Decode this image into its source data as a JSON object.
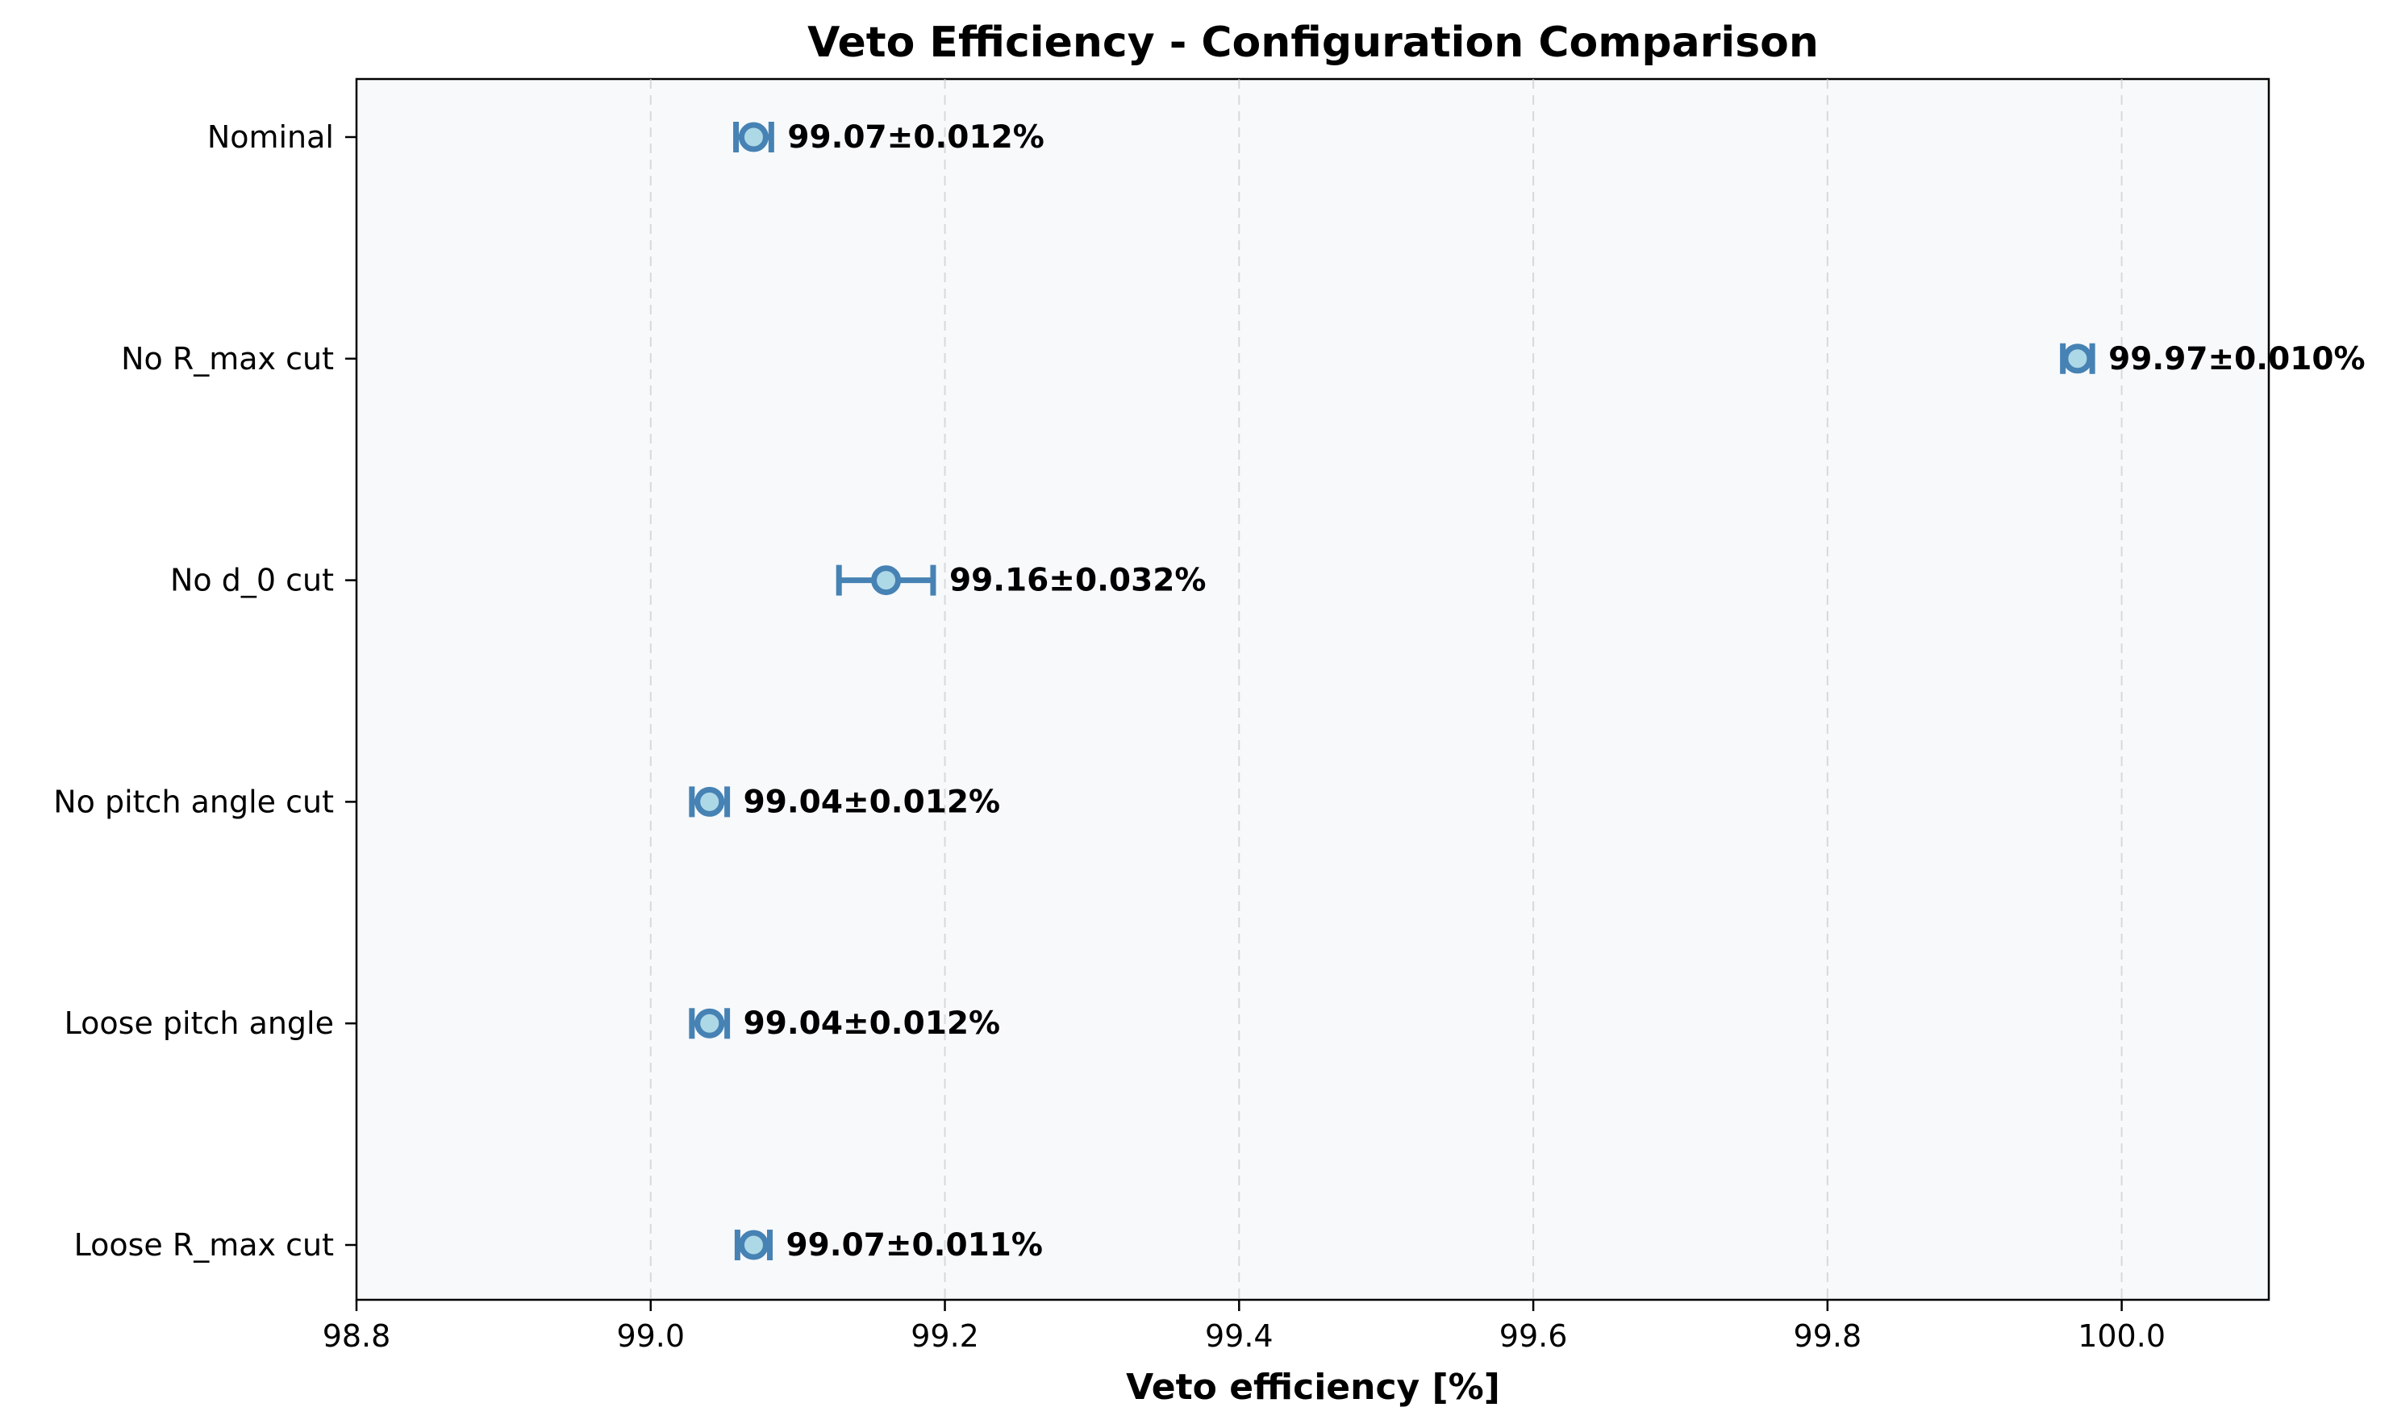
{
  "chart_data": {
    "type": "scatter",
    "orientation": "horizontal-errorbar",
    "title": "Veto Efficiency - Configuration Comparison",
    "xlabel": "Veto efficiency [%]",
    "ylabel": "",
    "xlim": [
      98.8,
      100.1
    ],
    "xticks": [
      "98.8",
      "99.0",
      "99.2",
      "99.4",
      "99.6",
      "99.8",
      "100.0"
    ],
    "grid": "vertical dashed",
    "categories": [
      "Nominal",
      "No R_max cut",
      "No d_0 cut",
      "No pitch angle cut",
      "Loose pitch angle",
      "Loose R_max cut"
    ],
    "values": [
      99.07,
      99.97,
      99.16,
      99.04,
      99.04,
      99.07
    ],
    "errors": [
      0.012,
      0.01,
      0.032,
      0.012,
      0.012,
      0.011
    ],
    "labels": [
      "99.07±0.012%",
      "99.97±0.010%",
      "99.16±0.032%",
      "99.04±0.012%",
      "99.04±0.012%",
      "99.07±0.011%"
    ],
    "colors": {
      "marker_edge": "#4682b4",
      "marker_face": "#add8e6",
      "errorbar": "#4682b4",
      "plot_bg": "#f7f9fb"
    }
  }
}
